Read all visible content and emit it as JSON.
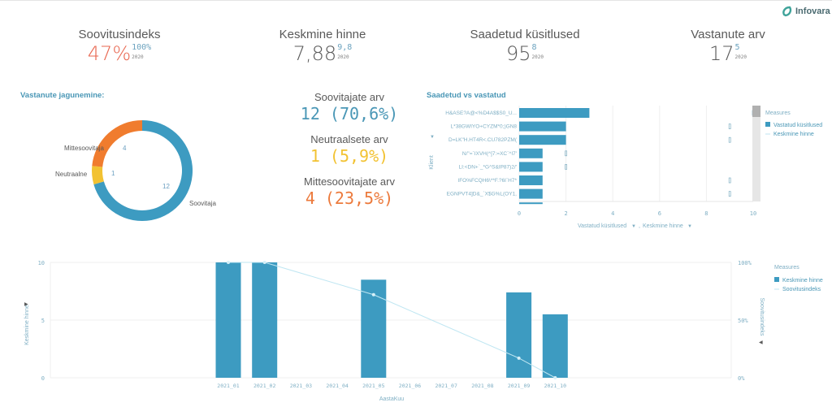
{
  "brand": {
    "logo_text": "Infovara",
    "logo_color": "#3fa39a"
  },
  "colors": {
    "primary": "#3d9bc1",
    "orange": "#f07c2e",
    "yellow": "#f2c232",
    "red_kpi": "#e8664f",
    "line": "#bfe6f2",
    "axis_text": "#7fafc4"
  },
  "kpis": [
    {
      "title": "Soovitusindeks",
      "value": "47%",
      "compare": "100%",
      "year": "2020",
      "color": "#e8664f"
    },
    {
      "title": "Keskmine hinne",
      "value": "7,88",
      "compare": "9,8",
      "year": "2020",
      "color": "#595959"
    },
    {
      "title": "Saadetud küsitlused",
      "value": "95",
      "compare": "8",
      "year": "2020",
      "color": "#595959"
    },
    {
      "title": "Vastanute arv",
      "value": "17",
      "compare": "5",
      "year": "2020",
      "color": "#595959"
    }
  ],
  "donut": {
    "title": "Vastanute jagunemine:",
    "segments": [
      {
        "label": "Soovitaja",
        "value": 12,
        "color": "#3d9bc1"
      },
      {
        "label": "Neutraalne",
        "value": 1,
        "color": "#f2c232"
      },
      {
        "label": "Mittesoovitaja",
        "value": 4,
        "color": "#f07c2e"
      }
    ]
  },
  "stats": [
    {
      "label": "Soovitajate arv",
      "value": "12 (70,6%)",
      "color": "#4a97b6"
    },
    {
      "label": "Neutraalsete arv",
      "value": "1 (5,9%)",
      "color": "#f2c232"
    },
    {
      "label": "Mittesoovitajate arv",
      "value": "4 (23,5%)",
      "color": "#ec7a3c"
    }
  ],
  "chart_data": [
    {
      "type": "bar",
      "orientation": "horizontal",
      "title": "Saadetud vs vastatud",
      "ylabel": "Klient",
      "xlabel_parts": [
        "Vastatud küsitlused",
        "Keskmine hinne"
      ],
      "categories": [
        "H&ASE?A@<%D4A$$S0_U...",
        "L*38GWIYO+CYZM*0;)GN8",
        "D=LK\"H.HT4R<.CU782PZM(",
        "N/\"=`IXVH(^]7:=XC`^I7'",
        "LI:<DN+`_*G^S&IP87)2/'",
        "IFO%FCQH6\\**F.?6I`H7*",
        "EGNPVT4]D&_`X$G%L(OY1,"
      ],
      "series": [
        {
          "name": "Vastatud küsitlused",
          "type": "bar",
          "values": [
            3,
            2,
            2,
            1,
            1,
            1,
            1
          ]
        },
        {
          "name": "Keskmine hinne",
          "type": "marker",
          "values": [
            10,
            9,
            9,
            2,
            2,
            9,
            9
          ]
        }
      ],
      "xticks": [
        "0",
        "2",
        "4",
        "6",
        "8",
        "10"
      ],
      "xlim": [
        0,
        10
      ],
      "grid": true,
      "legend": {
        "title": "Measures",
        "position": "right",
        "items": [
          "Vastatud küsitlused",
          "Keskmine hinne"
        ]
      }
    },
    {
      "type": "bar",
      "title": "",
      "xlabel": "AastaKuu",
      "ylabel": "Keskmine hinne",
      "y2label": "Soovitusindeks",
      "categories": [
        "2021_01",
        "2021_02",
        "2021_03",
        "2021_04",
        "2021_05",
        "2021_06",
        "2021_07",
        "2021_08",
        "2021_09",
        "2021_10"
      ],
      "series": [
        {
          "name": "Keskmine hinne",
          "type": "bar",
          "axis": "left",
          "values": [
            10,
            10,
            null,
            null,
            8.5,
            null,
            null,
            null,
            7.4,
            5.5
          ]
        },
        {
          "name": "Soovitusindeks",
          "type": "line",
          "axis": "right",
          "values": [
            100,
            100,
            null,
            null,
            72,
            null,
            null,
            null,
            17,
            0
          ]
        }
      ],
      "yticks": [
        "0",
        "5",
        "10"
      ],
      "ylim": [
        0,
        10
      ],
      "y2ticks": [
        "0%",
        "50%",
        "100%"
      ],
      "y2lim": [
        0,
        100
      ],
      "grid": true,
      "legend": {
        "title": "Measures",
        "position": "right",
        "items": [
          "Keskmine hinne",
          "Soovitusindeks"
        ]
      }
    }
  ]
}
